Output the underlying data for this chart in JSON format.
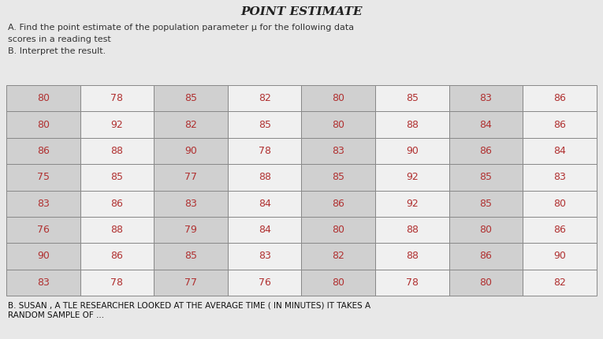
{
  "title": "POINT ESTIMATE",
  "subtitle": "A. Find the point estimate of the population parameter μ for the following data\nscores in a reading test\nB. Interpret the result.",
  "footer": "B. SUSAN , A TLE RESEARCHER LOOKED AT THE AVERAGE TIME ( IN MINUTES) IT TAKES A\nRANDOM SAMPLE OF ...",
  "table_data": [
    [
      80,
      78,
      85,
      82,
      80,
      85,
      83,
      86
    ],
    [
      80,
      92,
      82,
      85,
      80,
      88,
      84,
      86
    ],
    [
      86,
      88,
      90,
      78,
      83,
      90,
      86,
      84
    ],
    [
      75,
      85,
      77,
      88,
      85,
      92,
      85,
      83
    ],
    [
      83,
      86,
      83,
      84,
      86,
      92,
      85,
      80
    ],
    [
      76,
      88,
      79,
      84,
      80,
      88,
      80,
      86
    ],
    [
      90,
      86,
      85,
      83,
      82,
      88,
      86,
      90
    ],
    [
      83,
      78,
      77,
      76,
      80,
      78,
      80,
      82
    ]
  ],
  "bg_color": "#e8e8e8",
  "page_color": "#dcdcdc",
  "cell_col_dark": "#d0d0d0",
  "cell_col_light": "#f0f0f0",
  "title_color": "#222222",
  "subtitle_color": "#333333",
  "red_text_color": "#b03030",
  "footer_color": "#111111",
  "grid_color": "#888888",
  "title_fontsize": 11,
  "subtitle_fontsize": 8,
  "table_fontsize": 9,
  "footer_fontsize": 7.5,
  "fig_width": 7.65,
  "fig_height": 4.3,
  "fig_dpi": 100
}
